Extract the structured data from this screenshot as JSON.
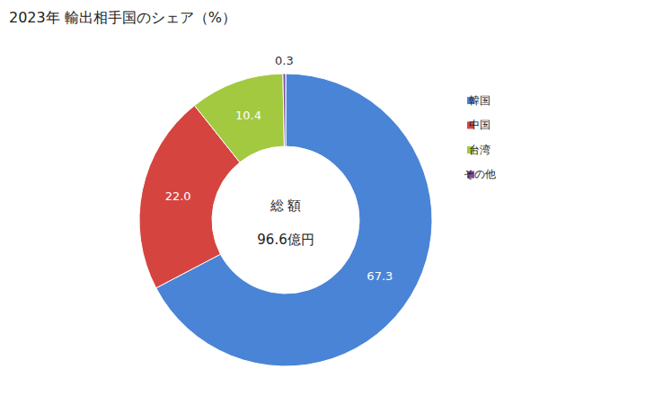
{
  "chart_data": {
    "type": "pie",
    "title": "2023年 輸出相手国のシェア（%）",
    "categories": [
      "韓国",
      "中国",
      "台湾",
      "その他"
    ],
    "values": [
      67.3,
      22.0,
      10.4,
      0.3
    ],
    "value_labels": [
      "67.3",
      "22.0",
      "10.4",
      "0.3"
    ],
    "colors": [
      "#4a84d6",
      "#d6443f",
      "#a3c940",
      "#7b4ea6"
    ],
    "data_labels": true,
    "legend": "right",
    "annotations": [
      "総 額",
      "96.6億円"
    ]
  }
}
